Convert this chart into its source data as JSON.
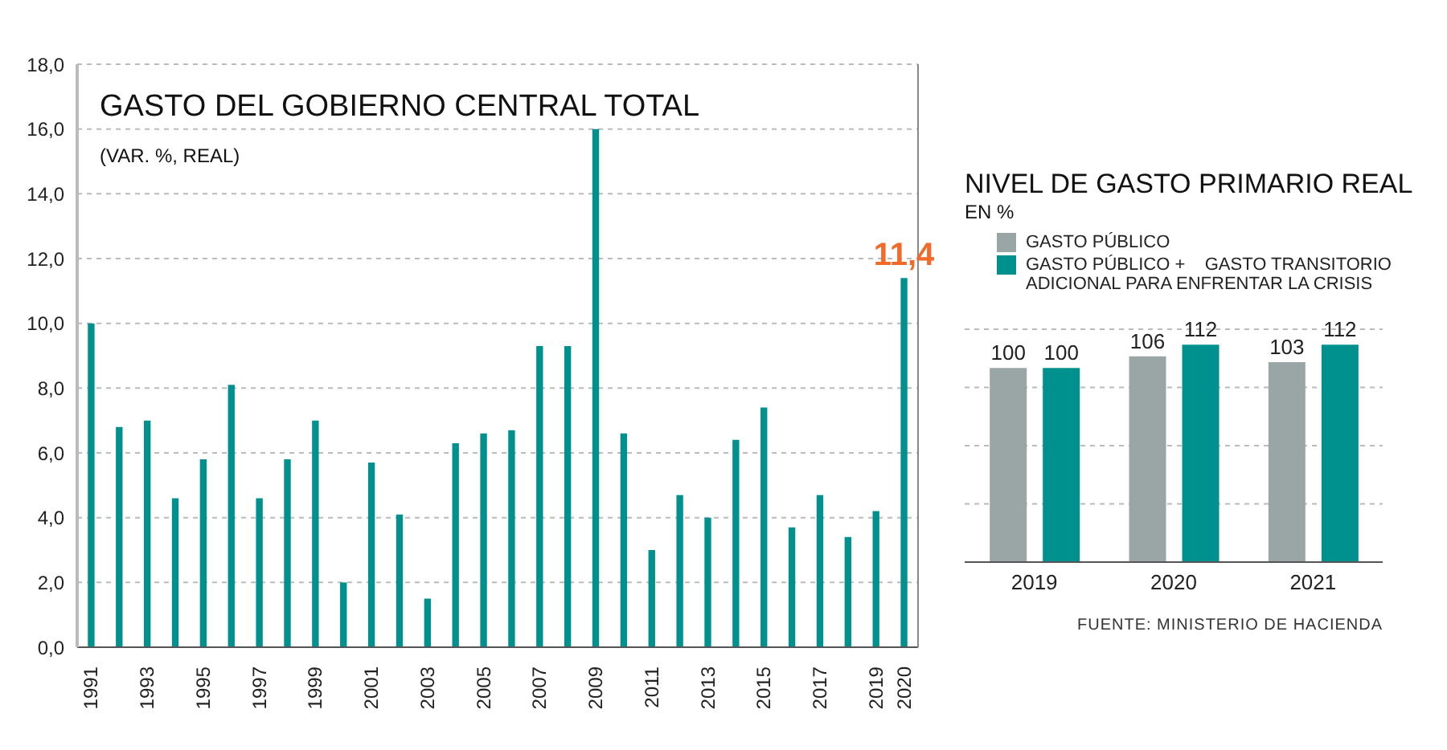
{
  "chart_data": [
    {
      "type": "bar",
      "title": "GASTO DEL GOBIERNO CENTRAL TOTAL",
      "subtitle": "(VAR. %, REAL)",
      "categories": [
        "1991",
        null,
        "1993",
        null,
        "1995",
        null,
        "1997",
        null,
        "1999",
        null,
        "2001",
        null,
        "2003",
        null,
        "2005",
        null,
        "2007",
        null,
        "2009",
        null,
        "2011",
        null,
        "2013",
        null,
        "2015",
        null,
        "2017",
        null,
        "2019",
        "2020"
      ],
      "series": [
        {
          "color": "#00918f",
          "values": [
            10.0,
            6.8,
            7.0,
            4.6,
            5.8,
            8.1,
            4.6,
            5.8,
            7.0,
            2.0,
            5.7,
            4.1,
            1.5,
            6.3,
            6.6,
            6.7,
            9.3,
            9.3,
            16.0,
            6.6,
            3.0,
            4.7,
            4.0,
            6.4,
            7.4,
            3.7,
            4.7,
            3.4,
            4.2,
            11.4
          ],
          "value_labels": [
            null,
            null,
            null,
            null,
            null,
            null,
            null,
            null,
            null,
            null,
            null,
            null,
            null,
            null,
            null,
            null,
            null,
            null,
            null,
            null,
            null,
            null,
            null,
            null,
            null,
            null,
            null,
            null,
            null,
            "11,4"
          ]
        }
      ],
      "ylim": [
        0,
        18
      ],
      "yticks": [
        {
          "value": 0,
          "label": "0,0"
        },
        {
          "value": 2,
          "label": "2,0"
        },
        {
          "value": 4,
          "label": "4,0"
        },
        {
          "value": 6,
          "label": "6,0"
        },
        {
          "value": 8,
          "label": "8,0"
        },
        {
          "value": 10,
          "label": "10,0"
        },
        {
          "value": 12,
          "label": "12,0"
        },
        {
          "value": 14,
          "label": "14,0"
        },
        {
          "value": 16,
          "label": "16,0"
        },
        {
          "value": 18,
          "label": "18,0"
        }
      ],
      "grid": "y",
      "legend": false
    },
    {
      "type": "bar",
      "title": "NIVEL DE GASTO PRIMARIO REAL",
      "subtitle": "EN %",
      "categories": [
        "2019",
        "2020",
        "2021"
      ],
      "series": [
        {
          "name": "GASTO PÚBLICO",
          "color": "#9aa6a6",
          "values": [
            100,
            106,
            103
          ]
        },
        {
          "name": "GASTO PÚBLICO +    GASTO TRANSITORIO ADICIONAL PARA ENFRENTAR LA CRISIS",
          "color": "#00918f",
          "values": [
            100,
            112,
            112
          ]
        }
      ],
      "data_labels": true,
      "grid": "y",
      "legend": "top",
      "annotations": [
        "FUENTE: MINISTERIO DE HACIENDA"
      ]
    }
  ]
}
